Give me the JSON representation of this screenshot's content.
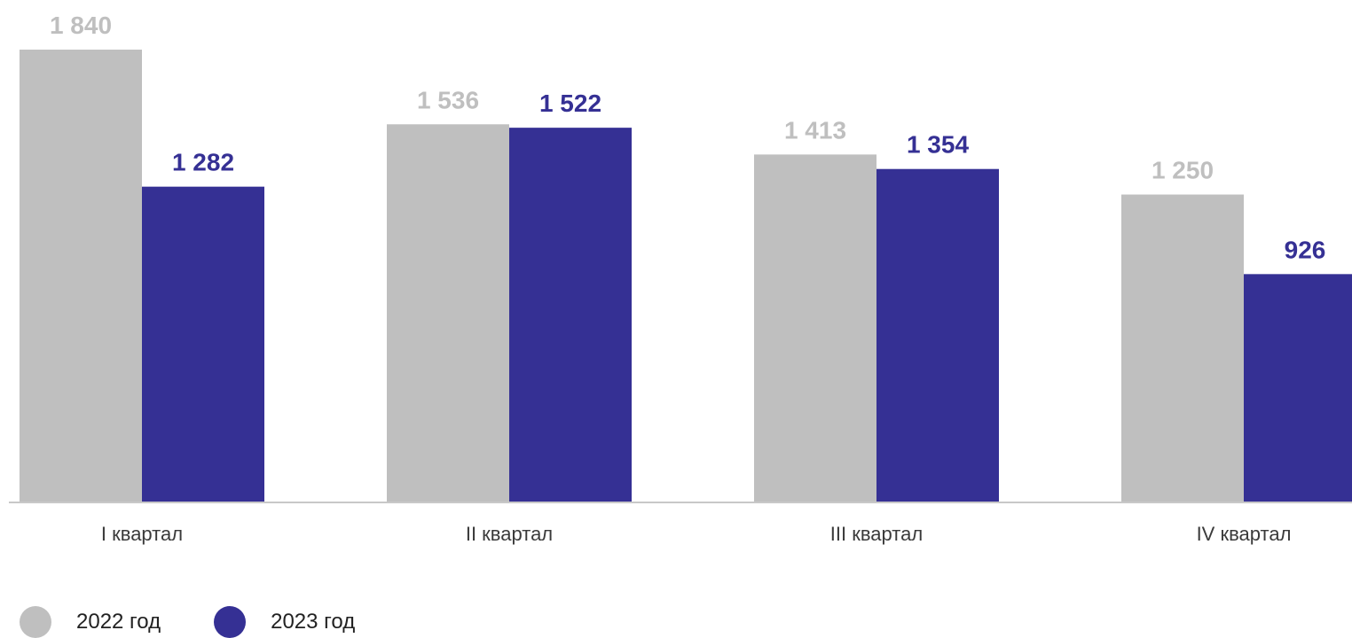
{
  "chart_data": {
    "type": "bar",
    "categories": [
      "I квартал",
      "II квартал",
      "III квартал",
      "IV квартал"
    ],
    "series": [
      {
        "name": "2022 год",
        "values": [
          1840,
          1536,
          1413,
          1250
        ],
        "labels": [
          "1 840",
          "1 536",
          "1 413",
          "1 250"
        ],
        "color": "#bfbfbf"
      },
      {
        "name": "2023 год",
        "values": [
          1282,
          1522,
          1354,
          926
        ],
        "labels": [
          "1 282",
          "1 522",
          "1 354",
          "926"
        ],
        "color": "#353094"
      }
    ],
    "ylim": [
      0,
      1840
    ],
    "grid": false,
    "legend_position": "bottom-left"
  }
}
